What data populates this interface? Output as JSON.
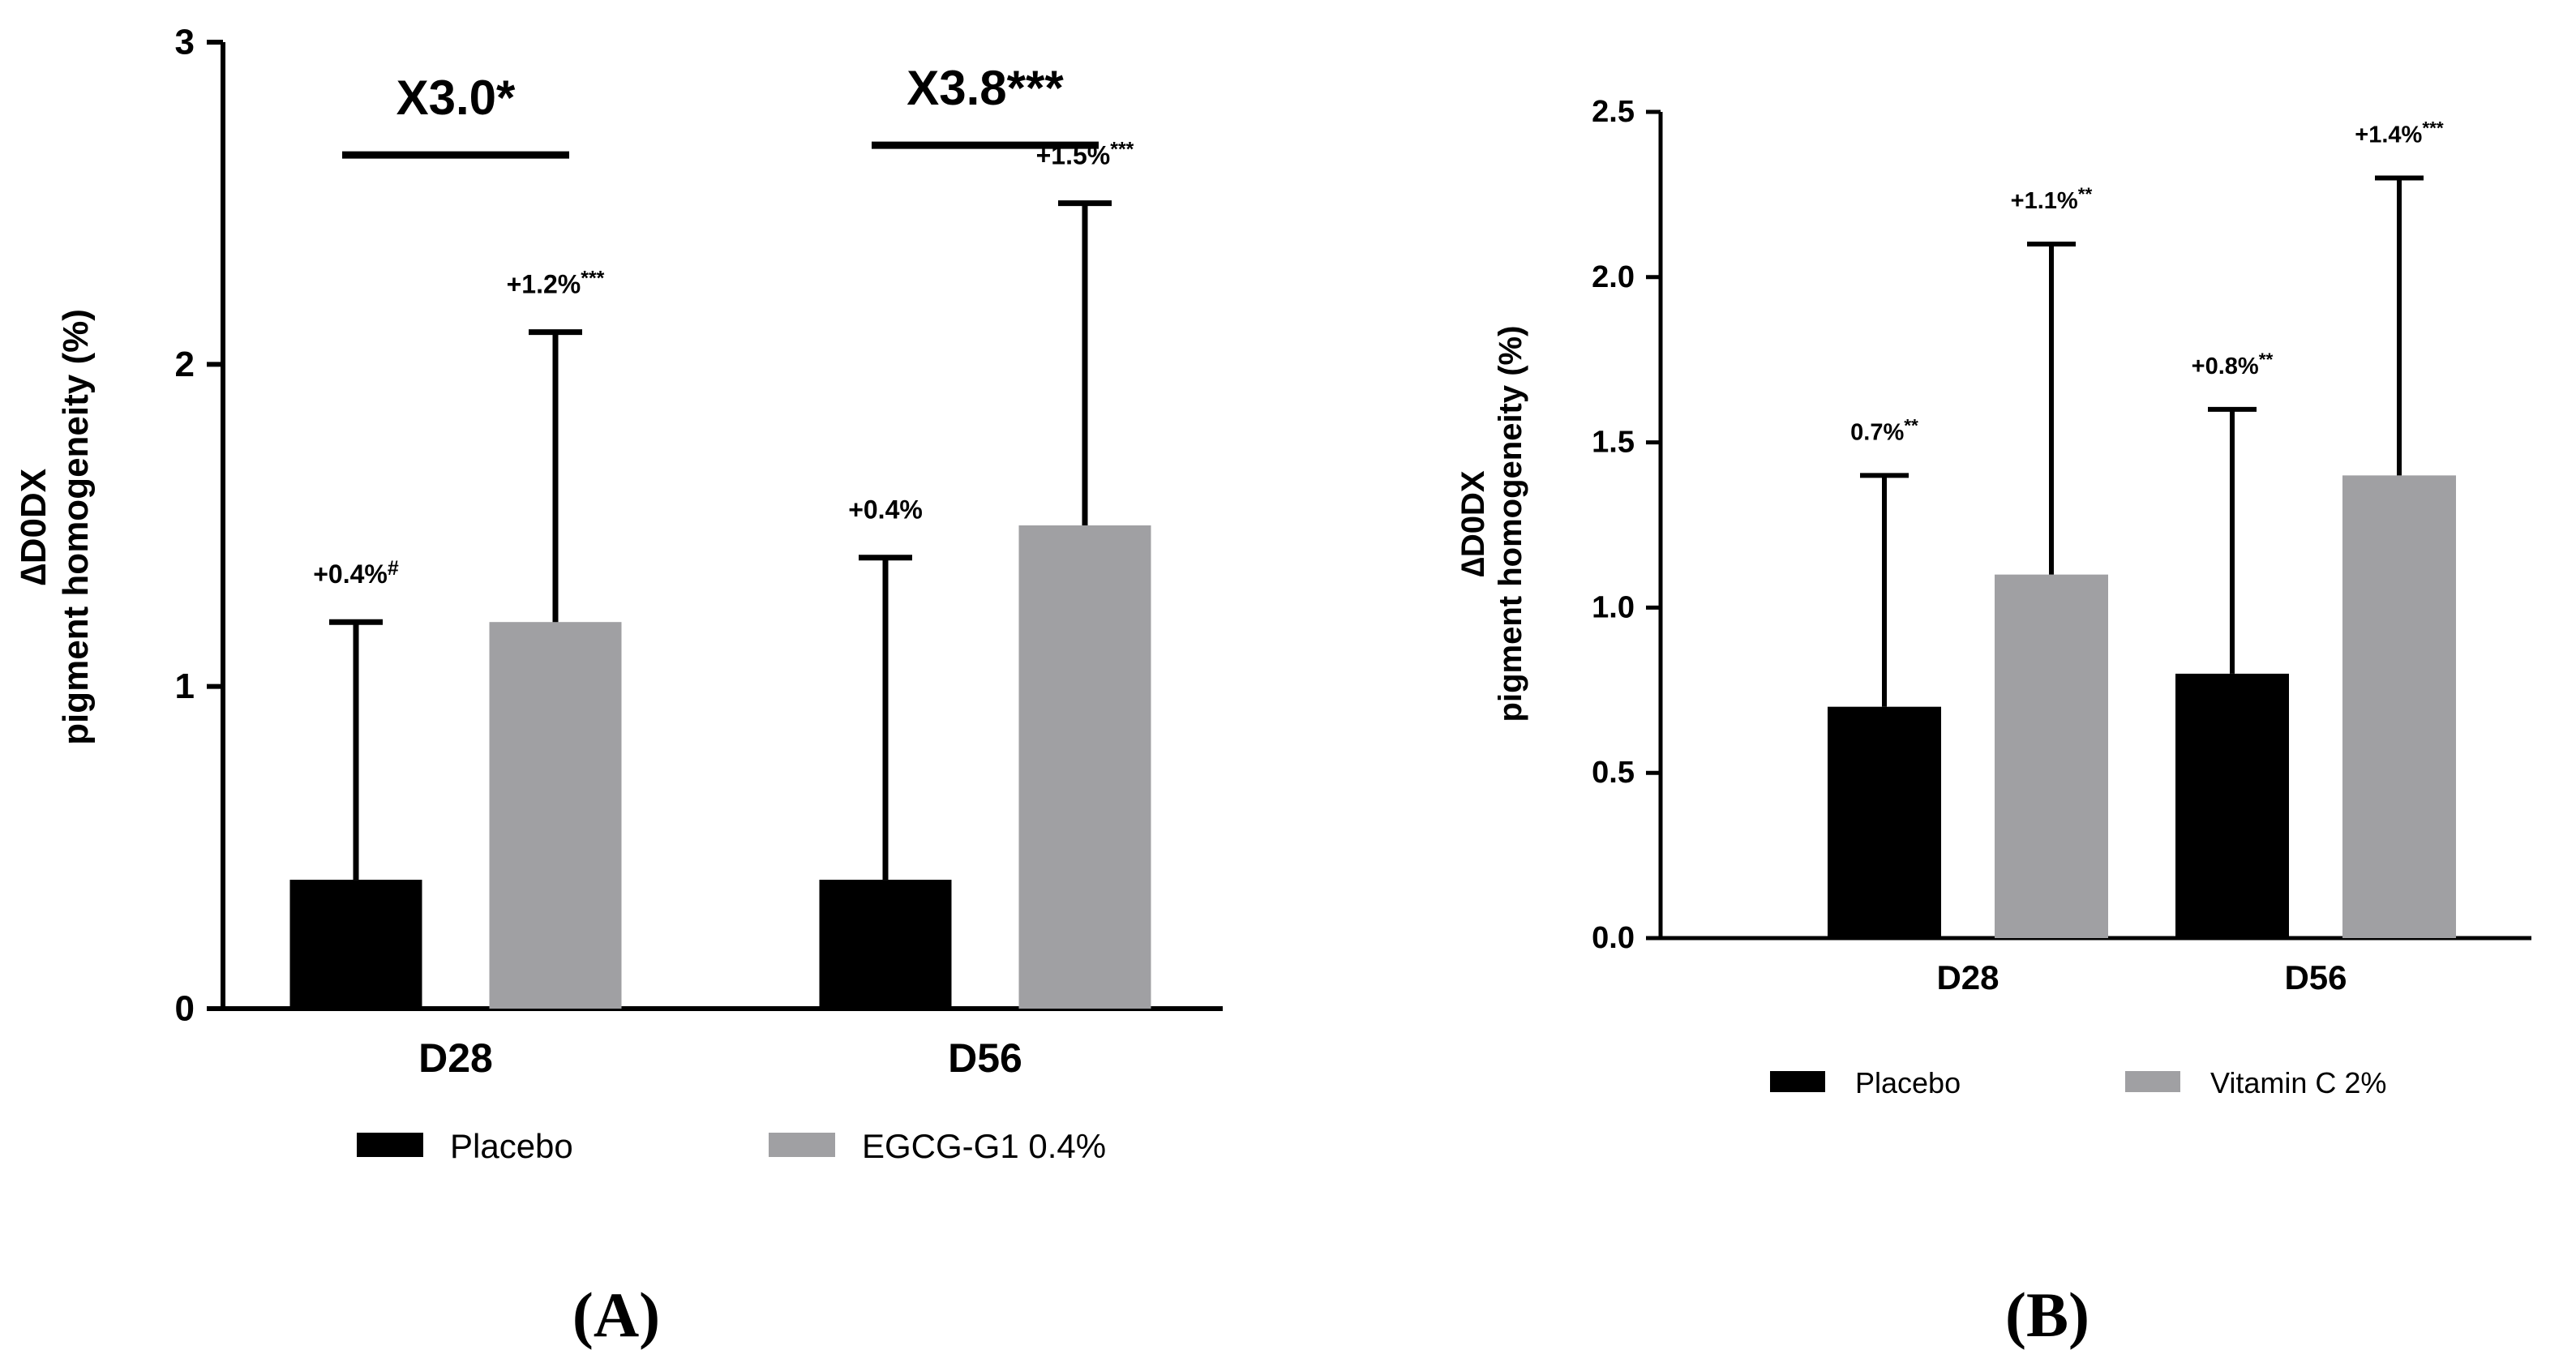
{
  "colors": {
    "placebo": "#000000",
    "treatment": "#a0a0a3",
    "axis": "#000000"
  },
  "chart_data": [
    {
      "panel_label": "(A)",
      "type": "bar",
      "title": "",
      "categories": [
        "D28",
        "D56"
      ],
      "ylabel_line1": "∆D0DX",
      "ylabel_line2": "pigment homogeneity (%)",
      "ylim": [
        0,
        3
      ],
      "yticks": [
        "0",
        "1",
        "2",
        "3"
      ],
      "ytick_values": [
        0,
        1,
        2,
        3
      ],
      "series": [
        {
          "name": "Placebo",
          "values": [
            0.4,
            0.4
          ],
          "error_upper": [
            1.2,
            1.4
          ],
          "labels": [
            "+0.4%",
            "+0.4%"
          ],
          "superscripts": [
            "#",
            ""
          ]
        },
        {
          "name": "EGCG-G1 0.4%",
          "values": [
            1.2,
            1.5
          ],
          "error_upper": [
            2.1,
            2.5
          ],
          "labels": [
            "+1.2%",
            "+1.5%"
          ],
          "superscripts": [
            "***",
            "***"
          ]
        }
      ],
      "comparisons": [
        {
          "category": "D28",
          "text": "X3.0*",
          "level": 2.65
        },
        {
          "category": "D56",
          "text": "X3.8***",
          "level": 2.68
        }
      ],
      "legend": [
        "Placebo",
        "EGCG-G1 0.4%"
      ],
      "legend_position": "bottom"
    },
    {
      "panel_label": "(B)",
      "type": "bar",
      "title": "",
      "categories": [
        "D28",
        "D56"
      ],
      "ylabel_line1": "∆D0DX",
      "ylabel_line2": "pigment homogeneity (%)",
      "ylim": [
        0,
        2.5
      ],
      "yticks": [
        "0.0",
        "0.5",
        "1.0",
        "1.5",
        "2.0",
        "2.5"
      ],
      "ytick_values": [
        0,
        0.5,
        1.0,
        1.5,
        2.0,
        2.5
      ],
      "series": [
        {
          "name": "Placebo",
          "values": [
            0.7,
            0.8
          ],
          "error_upper": [
            1.4,
            1.6
          ],
          "labels": [
            "0.7%",
            "+0.8%"
          ],
          "superscripts": [
            "**",
            "**"
          ]
        },
        {
          "name": "Vitamin C 2%",
          "values": [
            1.1,
            1.4
          ],
          "error_upper": [
            2.1,
            2.3
          ],
          "labels": [
            "+1.1%",
            "+1.4%"
          ],
          "superscripts": [
            "**",
            "***"
          ]
        }
      ],
      "comparisons": [],
      "legend": [
        "Placebo",
        "Vitamin C 2%"
      ],
      "legend_position": "bottom"
    }
  ]
}
